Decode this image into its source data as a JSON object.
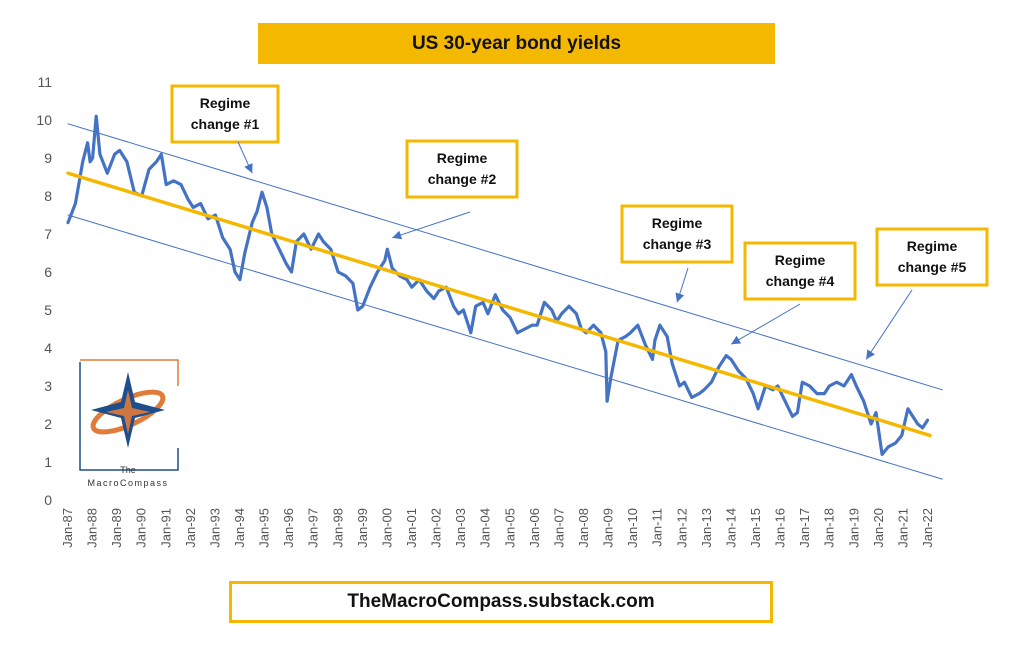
{
  "chart_data": {
    "type": "line",
    "title": "US 30-year bond yields",
    "xlabel": "",
    "ylabel": "",
    "ylim": [
      0,
      11
    ],
    "yticks": [
      0,
      1,
      2,
      3,
      4,
      5,
      6,
      7,
      8,
      9,
      10,
      11
    ],
    "xlim": [
      1987.0,
      2022.1
    ],
    "x_tick_labels": [
      "Jan-87",
      "Jan-88",
      "Jan-89",
      "Jan-90",
      "Jan-91",
      "Jan-92",
      "Jan-93",
      "Jan-94",
      "Jan-95",
      "Jan-96",
      "Jan-97",
      "Jan-98",
      "Jan-99",
      "Jan-00",
      "Jan-01",
      "Jan-02",
      "Jan-03",
      "Jan-04",
      "Jan-05",
      "Jan-06",
      "Jan-07",
      "Jan-08",
      "Jan-09",
      "Jan-10",
      "Jan-11",
      "Jan-12",
      "Jan-13",
      "Jan-14",
      "Jan-15",
      "Jan-16",
      "Jan-17",
      "Jan-18",
      "Jan-19",
      "Jan-20",
      "Jan-21",
      "Jan-22"
    ],
    "grid": false,
    "series": [
      {
        "kind": "data",
        "color": "#4472c4",
        "points": [
          [
            1987.0,
            7.3
          ],
          [
            1987.3,
            7.8
          ],
          [
            1987.6,
            8.9
          ],
          [
            1987.8,
            9.4
          ],
          [
            1987.9,
            8.9
          ],
          [
            1988.0,
            9.0
          ],
          [
            1988.15,
            10.1
          ],
          [
            1988.3,
            9.1
          ],
          [
            1988.6,
            8.6
          ],
          [
            1988.9,
            9.1
          ],
          [
            1989.1,
            9.2
          ],
          [
            1989.4,
            8.9
          ],
          [
            1989.7,
            8.1
          ],
          [
            1990.0,
            8.0
          ],
          [
            1990.3,
            8.7
          ],
          [
            1990.6,
            8.9
          ],
          [
            1990.8,
            9.1
          ],
          [
            1991.0,
            8.3
          ],
          [
            1991.3,
            8.4
          ],
          [
            1991.6,
            8.3
          ],
          [
            1991.9,
            7.9
          ],
          [
            1992.1,
            7.7
          ],
          [
            1992.4,
            7.8
          ],
          [
            1992.7,
            7.4
          ],
          [
            1993.0,
            7.5
          ],
          [
            1993.3,
            6.9
          ],
          [
            1993.6,
            6.6
          ],
          [
            1993.8,
            6.0
          ],
          [
            1994.0,
            5.8
          ],
          [
            1994.2,
            6.5
          ],
          [
            1994.5,
            7.3
          ],
          [
            1994.7,
            7.6
          ],
          [
            1994.9,
            8.1
          ],
          [
            1995.1,
            7.7
          ],
          [
            1995.3,
            7.0
          ],
          [
            1995.6,
            6.6
          ],
          [
            1995.9,
            6.2
          ],
          [
            1996.1,
            6.0
          ],
          [
            1996.3,
            6.8
          ],
          [
            1996.6,
            7.0
          ],
          [
            1996.9,
            6.6
          ],
          [
            1997.2,
            7.0
          ],
          [
            1997.4,
            6.8
          ],
          [
            1997.7,
            6.6
          ],
          [
            1998.0,
            6.0
          ],
          [
            1998.3,
            5.9
          ],
          [
            1998.6,
            5.7
          ],
          [
            1998.8,
            5.0
          ],
          [
            1999.0,
            5.1
          ],
          [
            1999.3,
            5.6
          ],
          [
            1999.6,
            6.0
          ],
          [
            1999.9,
            6.3
          ],
          [
            2000.0,
            6.6
          ],
          [
            2000.2,
            6.1
          ],
          [
            2000.5,
            5.9
          ],
          [
            2000.8,
            5.8
          ],
          [
            2001.0,
            5.6
          ],
          [
            2001.3,
            5.8
          ],
          [
            2001.6,
            5.5
          ],
          [
            2001.9,
            5.3
          ],
          [
            2002.1,
            5.5
          ],
          [
            2002.4,
            5.6
          ],
          [
            2002.7,
            5.1
          ],
          [
            2002.9,
            4.9
          ],
          [
            2003.1,
            5.0
          ],
          [
            2003.4,
            4.4
          ],
          [
            2003.6,
            5.1
          ],
          [
            2003.9,
            5.2
          ],
          [
            2004.1,
            4.9
          ],
          [
            2004.4,
            5.4
          ],
          [
            2004.7,
            5.0
          ],
          [
            2005.0,
            4.8
          ],
          [
            2005.3,
            4.4
          ],
          [
            2005.6,
            4.5
          ],
          [
            2005.9,
            4.6
          ],
          [
            2006.1,
            4.6
          ],
          [
            2006.4,
            5.2
          ],
          [
            2006.7,
            5.0
          ],
          [
            2006.9,
            4.7
          ],
          [
            2007.1,
            4.9
          ],
          [
            2007.4,
            5.1
          ],
          [
            2007.7,
            4.9
          ],
          [
            2007.9,
            4.5
          ],
          [
            2008.1,
            4.4
          ],
          [
            2008.4,
            4.6
          ],
          [
            2008.7,
            4.4
          ],
          [
            2008.9,
            3.9
          ],
          [
            2008.95,
            2.6
          ],
          [
            2009.1,
            3.2
          ],
          [
            2009.4,
            4.2
          ],
          [
            2009.7,
            4.3
          ],
          [
            2009.9,
            4.4
          ],
          [
            2010.2,
            4.6
          ],
          [
            2010.5,
            4.1
          ],
          [
            2010.8,
            3.7
          ],
          [
            2010.9,
            4.2
          ],
          [
            2011.1,
            4.6
          ],
          [
            2011.4,
            4.3
          ],
          [
            2011.6,
            3.6
          ],
          [
            2011.9,
            3.0
          ],
          [
            2012.1,
            3.1
          ],
          [
            2012.4,
            2.7
          ],
          [
            2012.7,
            2.8
          ],
          [
            2012.9,
            2.9
          ],
          [
            2013.2,
            3.1
          ],
          [
            2013.5,
            3.5
          ],
          [
            2013.8,
            3.8
          ],
          [
            2014.0,
            3.7
          ],
          [
            2014.3,
            3.4
          ],
          [
            2014.6,
            3.2
          ],
          [
            2014.9,
            2.8
          ],
          [
            2015.1,
            2.4
          ],
          [
            2015.4,
            3.0
          ],
          [
            2015.7,
            2.9
          ],
          [
            2015.9,
            3.0
          ],
          [
            2016.2,
            2.6
          ],
          [
            2016.5,
            2.2
          ],
          [
            2016.7,
            2.3
          ],
          [
            2016.9,
            3.1
          ],
          [
            2017.2,
            3.0
          ],
          [
            2017.5,
            2.8
          ],
          [
            2017.8,
            2.8
          ],
          [
            2018.0,
            3.0
          ],
          [
            2018.3,
            3.1
          ],
          [
            2018.6,
            3.0
          ],
          [
            2018.9,
            3.3
          ],
          [
            2019.1,
            3.0
          ],
          [
            2019.4,
            2.6
          ],
          [
            2019.7,
            2.0
          ],
          [
            2019.9,
            2.3
          ],
          [
            2020.15,
            1.2
          ],
          [
            2020.4,
            1.4
          ],
          [
            2020.7,
            1.5
          ],
          [
            2020.95,
            1.7
          ],
          [
            2021.2,
            2.4
          ],
          [
            2021.4,
            2.2
          ],
          [
            2021.6,
            2.0
          ],
          [
            2021.8,
            1.9
          ],
          [
            2022.0,
            2.1
          ]
        ]
      },
      {
        "kind": "trend",
        "color": "#f5b800",
        "points": [
          [
            1987.0,
            8.6
          ],
          [
            2022.1,
            1.7
          ]
        ]
      },
      {
        "kind": "channel-upper",
        "color": "#4472c4",
        "points": [
          [
            1987.0,
            9.9
          ],
          [
            2022.6,
            2.9
          ]
        ]
      },
      {
        "kind": "channel-lower",
        "color": "#4472c4",
        "points": [
          [
            1987.0,
            7.5
          ],
          [
            2022.6,
            0.55
          ]
        ]
      }
    ],
    "annotations": [
      {
        "lines": [
          "Regime",
          "change #1"
        ],
        "arrow_to": [
          1994.5,
          8.6
        ]
      },
      {
        "lines": [
          "Regime",
          "change #2"
        ],
        "arrow_to": [
          2000.2,
          6.9
        ]
      },
      {
        "lines": [
          "Regime",
          "change #3"
        ],
        "arrow_to": [
          2011.8,
          5.2
        ]
      },
      {
        "lines": [
          "Regime",
          "change #4"
        ],
        "arrow_to": [
          2014.0,
          4.1
        ]
      },
      {
        "lines": [
          "Regime",
          "change #5"
        ],
        "arrow_to": [
          2019.5,
          3.7
        ]
      }
    ]
  },
  "footer": {
    "text": "TheMacroCompass.substack.com"
  },
  "logo": {
    "line1": "The",
    "line2": "MacroCompass",
    "colors": [
      "#1f4e8c",
      "#e07b39"
    ]
  }
}
